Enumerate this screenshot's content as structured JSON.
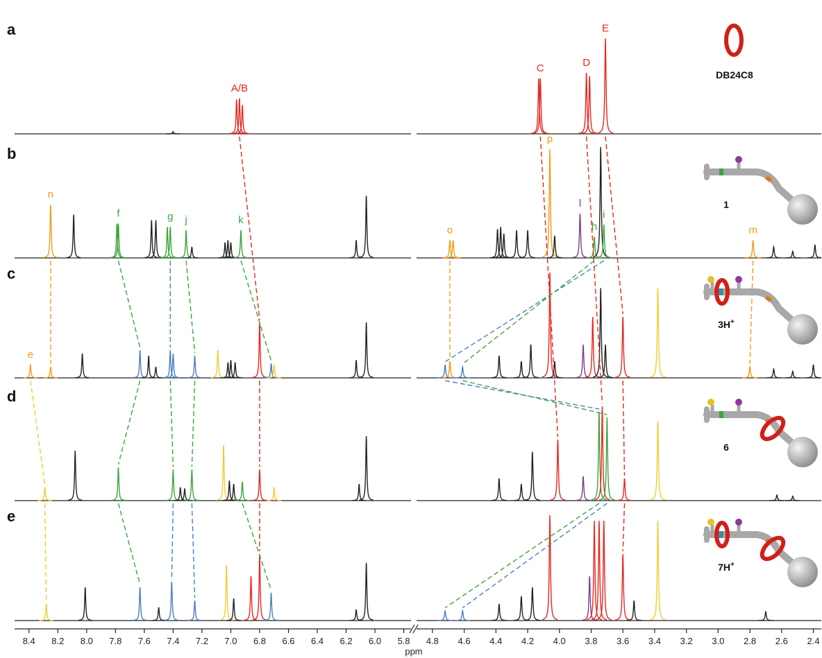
{
  "chart_data": {
    "type": "nmr",
    "x_label": "ppm",
    "ylim": [
      0,
      100
    ],
    "segments": [
      {
        "xlim": [
          8.5,
          5.75
        ],
        "xticks": [
          8.4,
          8.2,
          {
            "value": 8,
            "label": "8.0"
          },
          7.8,
          7.6,
          7.4,
          7.2,
          {
            "value": 7,
            "label": "7.0"
          },
          6.8,
          6.6,
          6.4,
          6.2,
          {
            "value": 6,
            "label": "6.0"
          },
          5.8
        ]
      },
      {
        "xlim": [
          4.9,
          2.35
        ],
        "xticks": [
          4.8,
          4.6,
          4.4,
          4.2,
          {
            "value": 4,
            "label": "4.0"
          },
          3.8,
          3.6,
          3.4,
          3.2,
          {
            "value": 3,
            "label": "3.0"
          },
          2.8,
          2.6,
          2.4
        ]
      }
    ],
    "panels": [
      {
        "label": "a",
        "compound": {
          "text": "DB24C8"
        },
        "peaks": [
          {
            "ppm": 7.4,
            "height": 2,
            "color": "#222222"
          },
          {
            "ppm": 6.96,
            "height": 31,
            "color": "#e8261f"
          },
          {
            "ppm": 6.94,
            "height": 32,
            "color": "#e8261f",
            "label": "A/B"
          },
          {
            "ppm": 6.92,
            "height": 26,
            "color": "#e8261f"
          },
          {
            "ppm": 4.13,
            "height": 50,
            "color": "#e8261f"
          },
          {
            "ppm": 4.12,
            "height": 50,
            "color": "#e8261f",
            "label": "C"
          },
          {
            "ppm": 3.83,
            "height": 55,
            "color": "#e8261f",
            "label": "D"
          },
          {
            "ppm": 3.81,
            "height": 52,
            "color": "#e8261f"
          },
          {
            "ppm": 3.71,
            "height": 86,
            "color": "#e8261f",
            "label": "E"
          }
        ]
      },
      {
        "label": "b",
        "compound": {
          "text": "1"
        },
        "peaks": [
          {
            "ppm": 8.25,
            "height": 48,
            "color": "#f39c12",
            "label": "n"
          },
          {
            "ppm": 8.09,
            "height": 39,
            "color": "#222222"
          },
          {
            "ppm": 7.79,
            "height": 31,
            "color": "#3aa63a"
          },
          {
            "ppm": 7.78,
            "height": 31,
            "color": "#3aa63a",
            "label": "f"
          },
          {
            "ppm": 7.55,
            "height": 34,
            "color": "#222222"
          },
          {
            "ppm": 7.52,
            "height": 34,
            "color": "#222222"
          },
          {
            "ppm": 7.44,
            "height": 28,
            "color": "#3aa63a"
          },
          {
            "ppm": 7.42,
            "height": 28,
            "color": "#3aa63a",
            "label": "g"
          },
          {
            "ppm": 7.31,
            "height": 25,
            "color": "#3aa63a",
            "label": "j"
          },
          {
            "ppm": 7.27,
            "height": 10,
            "color": "#222222"
          },
          {
            "ppm": 7.04,
            "height": 14,
            "color": "#222222"
          },
          {
            "ppm": 7.02,
            "height": 16,
            "color": "#222222"
          },
          {
            "ppm": 7.0,
            "height": 14,
            "color": "#222222"
          },
          {
            "ppm": 6.93,
            "height": 25,
            "color": "#3aa63a",
            "label": "k"
          },
          {
            "ppm": 6.13,
            "height": 16,
            "color": "#222222"
          },
          {
            "ppm": 6.06,
            "height": 56,
            "color": "#222222"
          },
          {
            "ppm": 4.69,
            "height": 16,
            "color": "#f39c12",
            "label": "o"
          },
          {
            "ppm": 4.67,
            "height": 16,
            "color": "#f39c12"
          },
          {
            "ppm": 4.39,
            "height": 26,
            "color": "#222222"
          },
          {
            "ppm": 4.37,
            "height": 28,
            "color": "#222222"
          },
          {
            "ppm": 4.35,
            "height": 22,
            "color": "#222222"
          },
          {
            "ppm": 4.27,
            "height": 25,
            "color": "#222222"
          },
          {
            "ppm": 4.2,
            "height": 25,
            "color": "#222222"
          },
          {
            "ppm": 4.06,
            "height": 98,
            "color": "#f39c12",
            "label": "p"
          },
          {
            "ppm": 4.03,
            "height": 20,
            "color": "#222222"
          },
          {
            "ppm": 3.87,
            "height": 40,
            "color": "#7a3d8f",
            "label": "l"
          },
          {
            "ppm": 3.78,
            "height": 19,
            "color": "#3aa63a",
            "label": "h"
          },
          {
            "ppm": 3.74,
            "height": 100,
            "color": "#222222"
          },
          {
            "ppm": 3.72,
            "height": 30,
            "color": "#3aa63a",
            "label": "i"
          },
          {
            "ppm": 2.78,
            "height": 16,
            "color": "#f39c12",
            "label": "m"
          },
          {
            "ppm": 2.65,
            "height": 10,
            "color": "#222222"
          },
          {
            "ppm": 2.53,
            "height": 6,
            "color": "#222222"
          },
          {
            "ppm": 2.39,
            "height": 12,
            "color": "#222222"
          }
        ]
      },
      {
        "label": "c",
        "compound": {
          "text": "3H",
          "sup": "+"
        },
        "peaks": [
          {
            "ppm": 8.39,
            "height": 12,
            "color": "#f39c12",
            "label": "e"
          },
          {
            "ppm": 8.25,
            "height": 10,
            "color": "#f39c12"
          },
          {
            "ppm": 8.03,
            "height": 22,
            "color": "#222222"
          },
          {
            "ppm": 7.63,
            "height": 25,
            "color": "#4a7fc1"
          },
          {
            "ppm": 7.57,
            "height": 20,
            "color": "#222222"
          },
          {
            "ppm": 7.52,
            "height": 10,
            "color": "#222222"
          },
          {
            "ppm": 7.42,
            "height": 25,
            "color": "#4a7fc1"
          },
          {
            "ppm": 7.4,
            "height": 22,
            "color": "#4a7fc1"
          },
          {
            "ppm": 7.25,
            "height": 20,
            "color": "#4a7fc1"
          },
          {
            "ppm": 7.09,
            "height": 25,
            "color": "#f2cc30"
          },
          {
            "ppm": 7.02,
            "height": 14,
            "color": "#222222"
          },
          {
            "ppm": 7.0,
            "height": 16,
            "color": "#222222"
          },
          {
            "ppm": 6.97,
            "height": 14,
            "color": "#222222"
          },
          {
            "ppm": 6.8,
            "height": 50,
            "color": "#e8261f"
          },
          {
            "ppm": 6.72,
            "height": 13,
            "color": "#4a7fc1"
          },
          {
            "ppm": 6.7,
            "height": 12,
            "color": "#f2cc30"
          },
          {
            "ppm": 6.13,
            "height": 16,
            "color": "#222222"
          },
          {
            "ppm": 6.06,
            "height": 50,
            "color": "#222222"
          },
          {
            "ppm": 4.72,
            "height": 12,
            "color": "#4a7fc1"
          },
          {
            "ppm": 4.69,
            "height": 15,
            "color": "#f39c12"
          },
          {
            "ppm": 4.61,
            "height": 10,
            "color": "#4a7fc1"
          },
          {
            "ppm": 4.38,
            "height": 20,
            "color": "#222222"
          },
          {
            "ppm": 4.24,
            "height": 15,
            "color": "#222222"
          },
          {
            "ppm": 4.18,
            "height": 30,
            "color": "#222222"
          },
          {
            "ppm": 4.06,
            "height": 95,
            "color": "#e8261f"
          },
          {
            "ppm": 4.03,
            "height": 15,
            "color": "#222222"
          },
          {
            "ppm": 3.85,
            "height": 30,
            "color": "#7a3d8f"
          },
          {
            "ppm": 3.79,
            "height": 55,
            "color": "#e8261f"
          },
          {
            "ppm": 3.74,
            "height": 81,
            "color": "#222222"
          },
          {
            "ppm": 3.71,
            "height": 30,
            "color": "#222222"
          },
          {
            "ppm": 3.6,
            "height": 55,
            "color": "#e8261f"
          },
          {
            "ppm": 3.38,
            "height": 81,
            "color": "#f2cc30"
          },
          {
            "ppm": 2.8,
            "height": 10,
            "color": "#f39c12"
          },
          {
            "ppm": 2.65,
            "height": 8,
            "color": "#222222"
          },
          {
            "ppm": 2.53,
            "height": 6,
            "color": "#222222"
          },
          {
            "ppm": 2.4,
            "height": 12,
            "color": "#222222"
          }
        ]
      },
      {
        "label": "d",
        "compound": {
          "text": "6"
        },
        "peaks": [
          {
            "ppm": 8.29,
            "height": 12,
            "color": "#f2cc30"
          },
          {
            "ppm": 8.08,
            "height": 45,
            "color": "#222222"
          },
          {
            "ppm": 7.78,
            "height": 30,
            "color": "#3aa63a"
          },
          {
            "ppm": 7.4,
            "height": 28,
            "color": "#3aa63a"
          },
          {
            "ppm": 7.35,
            "height": 12,
            "color": "#222222"
          },
          {
            "ppm": 7.32,
            "height": 11,
            "color": "#222222"
          },
          {
            "ppm": 7.27,
            "height": 28,
            "color": "#3aa63a"
          },
          {
            "ppm": 7.05,
            "height": 50,
            "color": "#f2cc30"
          },
          {
            "ppm": 7.01,
            "height": 18,
            "color": "#222222"
          },
          {
            "ppm": 6.98,
            "height": 15,
            "color": "#222222"
          },
          {
            "ppm": 6.92,
            "height": 17,
            "color": "#3aa63a"
          },
          {
            "ppm": 6.8,
            "height": 28,
            "color": "#e8261f"
          },
          {
            "ppm": 6.7,
            "height": 12,
            "color": "#f2cc30"
          },
          {
            "ppm": 6.11,
            "height": 15,
            "color": "#222222"
          },
          {
            "ppm": 6.06,
            "height": 58,
            "color": "#222222"
          },
          {
            "ppm": 4.38,
            "height": 20,
            "color": "#222222"
          },
          {
            "ppm": 4.24,
            "height": 15,
            "color": "#222222"
          },
          {
            "ppm": 4.17,
            "height": 44,
            "color": "#222222"
          },
          {
            "ppm": 4.01,
            "height": 55,
            "color": "#e8261f"
          },
          {
            "ppm": 3.85,
            "height": 22,
            "color": "#7a3d8f"
          },
          {
            "ppm": 3.75,
            "height": 80,
            "color": "#3aa63a"
          },
          {
            "ppm": 3.73,
            "height": 85,
            "color": "#e8261f"
          },
          {
            "ppm": 3.7,
            "height": 75,
            "color": "#3aa63a"
          },
          {
            "ppm": 3.59,
            "height": 20,
            "color": "#e8261f"
          },
          {
            "ppm": 3.38,
            "height": 72,
            "color": "#f2cc30"
          },
          {
            "ppm": 2.63,
            "height": 5,
            "color": "#222222"
          },
          {
            "ppm": 2.53,
            "height": 4,
            "color": "#222222"
          }
        ]
      },
      {
        "label": "e",
        "compound": {
          "text": "7H",
          "sup": "+"
        },
        "peaks": [
          {
            "ppm": 8.28,
            "height": 15,
            "color": "#f2cc30"
          },
          {
            "ppm": 8.01,
            "height": 30,
            "color": "#222222"
          },
          {
            "ppm": 7.63,
            "height": 30,
            "color": "#4a7fc1"
          },
          {
            "ppm": 7.5,
            "height": 12,
            "color": "#222222"
          },
          {
            "ppm": 7.41,
            "height": 35,
            "color": "#4a7fc1"
          },
          {
            "ppm": 7.25,
            "height": 18,
            "color": "#4a7fc1"
          },
          {
            "ppm": 7.03,
            "height": 50,
            "color": "#f2cc30"
          },
          {
            "ppm": 6.98,
            "height": 20,
            "color": "#222222"
          },
          {
            "ppm": 6.86,
            "height": 40,
            "color": "#e8261f"
          },
          {
            "ppm": 6.8,
            "height": 60,
            "color": "#e8261f"
          },
          {
            "ppm": 6.72,
            "height": 25,
            "color": "#4a7fc1"
          },
          {
            "ppm": 6.13,
            "height": 10,
            "color": "#222222"
          },
          {
            "ppm": 6.06,
            "height": 52,
            "color": "#222222"
          },
          {
            "ppm": 4.72,
            "height": 9,
            "color": "#4a7fc1"
          },
          {
            "ppm": 4.61,
            "height": 9,
            "color": "#4a7fc1"
          },
          {
            "ppm": 4.38,
            "height": 15,
            "color": "#222222"
          },
          {
            "ppm": 4.24,
            "height": 22,
            "color": "#222222"
          },
          {
            "ppm": 4.17,
            "height": 30,
            "color": "#222222"
          },
          {
            "ppm": 4.06,
            "height": 95,
            "color": "#e8261f"
          },
          {
            "ppm": 3.81,
            "height": 40,
            "color": "#7a3d8f"
          },
          {
            "ppm": 3.78,
            "height": 90,
            "color": "#e8261f"
          },
          {
            "ppm": 3.75,
            "height": 90,
            "color": "#e8261f"
          },
          {
            "ppm": 3.72,
            "height": 90,
            "color": "#e8261f"
          },
          {
            "ppm": 3.6,
            "height": 60,
            "color": "#e8261f"
          },
          {
            "ppm": 3.53,
            "height": 18,
            "color": "#222222"
          },
          {
            "ppm": 3.38,
            "height": 90,
            "color": "#f2cc30"
          },
          {
            "ppm": 2.7,
            "height": 8,
            "color": "#222222"
          }
        ]
      }
    ]
  }
}
